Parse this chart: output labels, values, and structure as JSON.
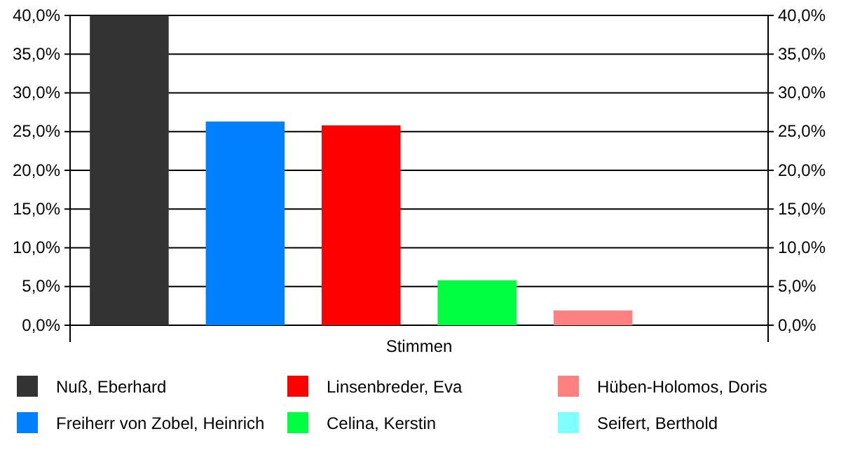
{
  "chart_data": {
    "type": "bar",
    "categories": [
      "Stimmen"
    ],
    "series": [
      {
        "name": "Nuß, Eberhard",
        "color": "#333333",
        "values": [
          40
        ]
      },
      {
        "name": "Freiherr von Zobel, Heinrich",
        "color": "#0080ff",
        "values": [
          26.3
        ]
      },
      {
        "name": "Linsenbreder, Eva",
        "color": "#ff0000",
        "values": [
          25.8
        ]
      },
      {
        "name": "Celina, Kerstin",
        "color": "#00ff40",
        "values": [
          5.8
        ]
      },
      {
        "name": "Hüben-Holomos, Doris",
        "color": "#ff8080",
        "values": [
          1.9
        ]
      },
      {
        "name": "Seifert, Berthold",
        "color": "#80ffff",
        "values": [
          0
        ]
      }
    ],
    "ylim": [
      0,
      40
    ],
    "yticks": [
      {
        "value": 0,
        "label": "0,0%"
      },
      {
        "value": 5,
        "label": "5,0%"
      },
      {
        "value": 10,
        "label": "10,0%"
      },
      {
        "value": 15,
        "label": "15,0%"
      },
      {
        "value": 20,
        "label": "20,0%"
      },
      {
        "value": 25,
        "label": "25,0%"
      },
      {
        "value": 30,
        "label": "30,0%"
      },
      {
        "value": 35,
        "label": "35,0%"
      },
      {
        "value": 40,
        "label": "40,0%"
      }
    ],
    "grid": "y",
    "legend": "bottom"
  }
}
